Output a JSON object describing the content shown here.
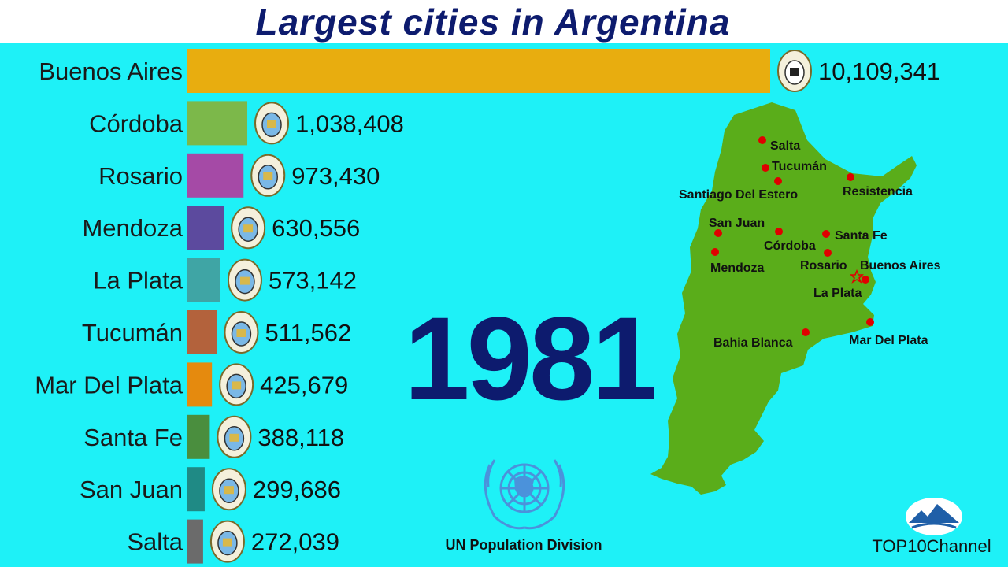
{
  "title": "Largest cities in Argentina",
  "year": "1981",
  "source": "UN Population Division",
  "brand": "TOP10Channel",
  "chart_data": {
    "type": "bar",
    "orientation": "horizontal",
    "title": "Largest cities in Argentina",
    "categories": [
      "Buenos Aires",
      "Córdoba",
      "Rosario",
      "Mendoza",
      "La Plata",
      "Tucumán",
      "Mar Del Plata",
      "Santa Fe",
      "San Juan",
      "Salta"
    ],
    "values": [
      10109341,
      1038408,
      973430,
      630556,
      573142,
      511562,
      425679,
      388118,
      299686,
      272039
    ],
    "value_labels": [
      "10,109,341",
      "1,038,408",
      "973,430",
      "630,556",
      "573,142",
      "511,562",
      "425,679",
      "388,118",
      "299,686",
      "272,039"
    ],
    "colors": [
      "#e8ad0f",
      "#7cb84a",
      "#a54aa6",
      "#5c4a9e",
      "#3fa5a5",
      "#b3623c",
      "#e58a0e",
      "#4a8e3e",
      "#1f8a85",
      "#6b6b6b"
    ]
  },
  "map": {
    "land_color": "#5aad1a",
    "marker_color": "#e00000",
    "labels": [
      "Salta",
      "Tucumán",
      "Santiago Del Estero",
      "Resistencia",
      "San Juan",
      "Santa Fe",
      "Córdoba",
      "Mendoza",
      "Rosario",
      "Buenos Aires",
      "La Plata",
      "Bahia Blanca",
      "Mar Del Plata"
    ]
  },
  "colors": {
    "background": "#1ef1f7",
    "title": "#0d1b6e",
    "year": "#0d1b6e",
    "un_blue": "#4b92db"
  },
  "icons": [
    "coat-of-arms-icon",
    "un-emblem-icon",
    "mountain-logo-icon"
  ]
}
